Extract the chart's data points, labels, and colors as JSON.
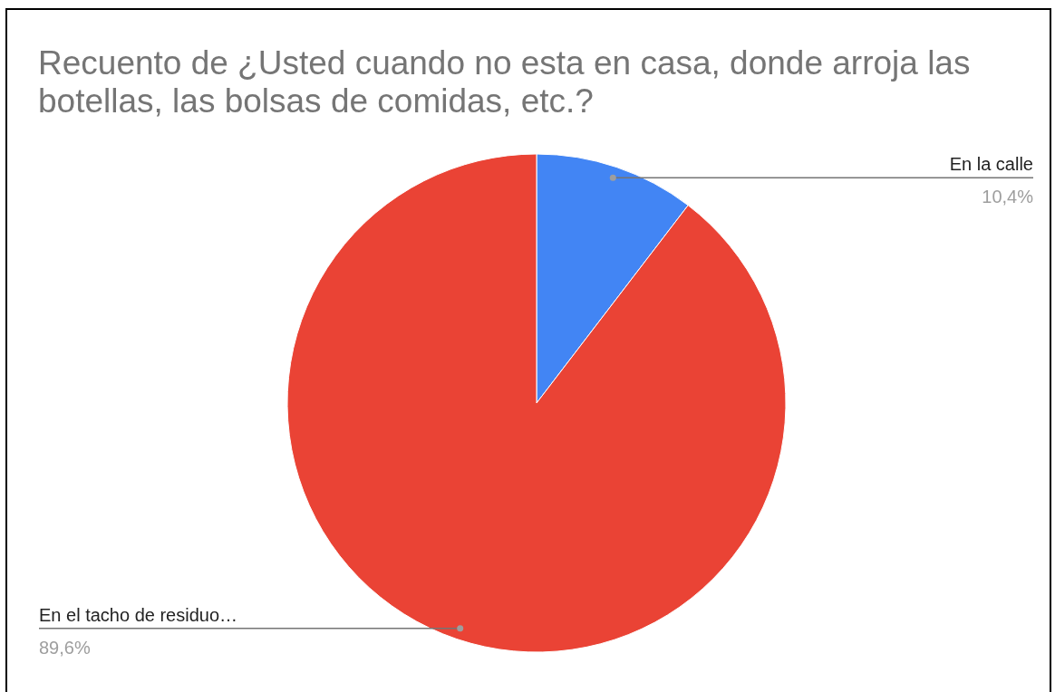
{
  "chart_data": {
    "type": "pie",
    "title": "Recuento de ¿Usted cuando no esta en casa, donde arroja las botellas, las bolsas de comidas, etc.?",
    "categories": [
      "En la calle",
      "En el tacho de residuo…"
    ],
    "values": [
      10.4,
      89.6
    ],
    "colors": [
      "#4285f4",
      "#ea4335"
    ],
    "value_labels": [
      "10,4%",
      "89,6%"
    ]
  }
}
